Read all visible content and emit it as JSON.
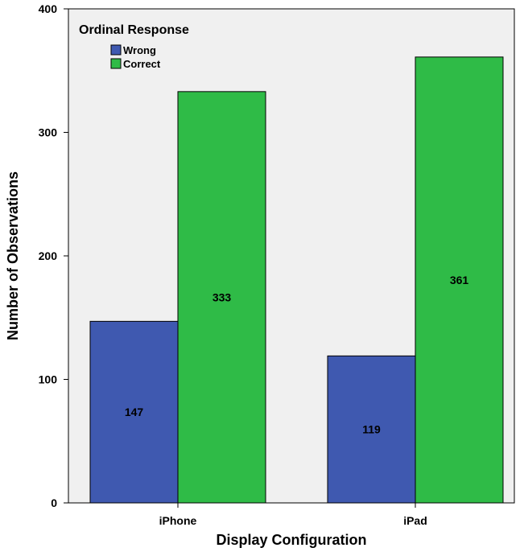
{
  "chart_data": {
    "type": "bar",
    "categories": [
      "iPhone",
      "iPad"
    ],
    "series": [
      {
        "name": "Wrong",
        "values": [
          147,
          119
        ],
        "color": "#3f59b0"
      },
      {
        "name": "Correct",
        "values": [
          333,
          361
        ],
        "color": "#2fbb47"
      }
    ],
    "xlabel": "Display Configuration",
    "ylabel": "Number of Observations",
    "ylim": [
      0,
      400
    ],
    "yticks": [
      0,
      100,
      200,
      300,
      400
    ],
    "legend": {
      "title": "Ordinal Response",
      "placement": "top-left"
    },
    "plot_background": "#f0f0f0",
    "grid": false
  }
}
